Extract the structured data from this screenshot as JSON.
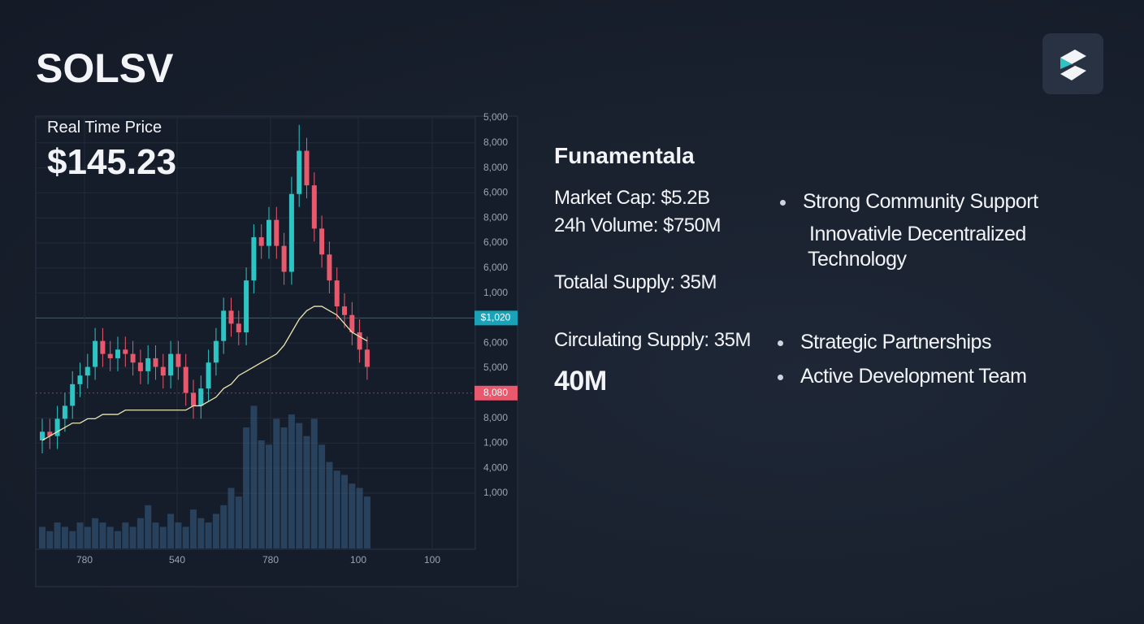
{
  "header": {
    "title": "SOLSV"
  },
  "price_panel": {
    "label": "Real Time Price",
    "price": "$145.23"
  },
  "chart_data": {
    "type": "candlestick",
    "ylim": [
      0,
      100
    ],
    "y2lim": [
      0,
      100
    ],
    "ylabels": [
      "5,000",
      "8,000",
      "8,000",
      "6,000",
      "8,000",
      "6,000",
      "6,000",
      "1,000",
      "$1,020",
      "6,000",
      "5,000",
      "8,080",
      "8,000",
      "1,000",
      "4,000",
      "1,000"
    ],
    "xtick_labels": [
      "780",
      "540",
      "780",
      "100",
      "100"
    ],
    "up_color": "#2ec4c4",
    "down_color": "#e8596e",
    "ma_color": "#e8e6b0",
    "volume_color": "#3d6f9a",
    "open": [
      25,
      27,
      26,
      30,
      33,
      38,
      40,
      42,
      48,
      45,
      44,
      46,
      45,
      43,
      41,
      44,
      42,
      40,
      45,
      42,
      36,
      33,
      37,
      43,
      48,
      55,
      52,
      50,
      62,
      72,
      70,
      76,
      70,
      64,
      82,
      92,
      84,
      74,
      68,
      62,
      56,
      54,
      50,
      46
    ],
    "high": [
      30,
      30,
      33,
      36,
      41,
      43,
      45,
      51,
      51,
      48,
      49,
      49,
      48,
      46,
      47,
      47,
      45,
      48,
      48,
      45,
      39,
      40,
      46,
      51,
      58,
      58,
      55,
      65,
      75,
      75,
      79,
      79,
      73,
      86,
      98,
      95,
      87,
      77,
      71,
      65,
      59,
      57,
      53,
      49
    ],
    "low": [
      22,
      23,
      23,
      27,
      30,
      35,
      37,
      39,
      42,
      41,
      41,
      42,
      40,
      38,
      38,
      39,
      37,
      37,
      39,
      33,
      30,
      30,
      34,
      40,
      45,
      49,
      47,
      47,
      59,
      67,
      67,
      67,
      61,
      61,
      79,
      81,
      71,
      65,
      59,
      53,
      51,
      47,
      43,
      39
    ],
    "close": [
      27,
      26,
      30,
      33,
      38,
      40,
      42,
      48,
      45,
      44,
      46,
      45,
      43,
      41,
      44,
      42,
      40,
      45,
      42,
      36,
      33,
      37,
      43,
      48,
      55,
      52,
      50,
      62,
      72,
      70,
      76,
      70,
      64,
      82,
      92,
      84,
      74,
      68,
      62,
      56,
      54,
      50,
      46,
      42
    ],
    "ma": [
      25,
      26,
      27,
      28,
      29,
      29,
      30,
      30,
      31,
      31,
      31,
      32,
      32,
      32,
      32,
      32,
      32,
      32,
      32,
      32,
      33,
      33,
      34,
      35,
      37,
      38,
      40,
      41,
      42,
      43,
      44,
      45,
      47,
      50,
      53,
      55,
      56,
      56,
      55,
      54,
      52,
      50,
      49,
      48
    ],
    "volume": [
      5,
      4,
      6,
      5,
      4,
      6,
      5,
      7,
      6,
      5,
      4,
      6,
      5,
      7,
      10,
      6,
      5,
      8,
      6,
      5,
      9,
      7,
      6,
      8,
      10,
      14,
      12,
      28,
      33,
      25,
      24,
      30,
      28,
      31,
      29,
      26,
      30,
      24,
      20,
      18,
      17,
      15,
      14,
      12
    ]
  },
  "fundamentals": {
    "title": "Funamentala",
    "items": [
      "Market Cap: $5.2B",
      "24h Volume: $750M",
      "Totalal Supply: 35M",
      "Circulating Supply: 35M",
      "40M"
    ],
    "bullets": [
      "Strong Community Support",
      "Innovativle Decentralized",
      "Technology",
      "Strategic Partnerships",
      "Active Development Team"
    ]
  }
}
